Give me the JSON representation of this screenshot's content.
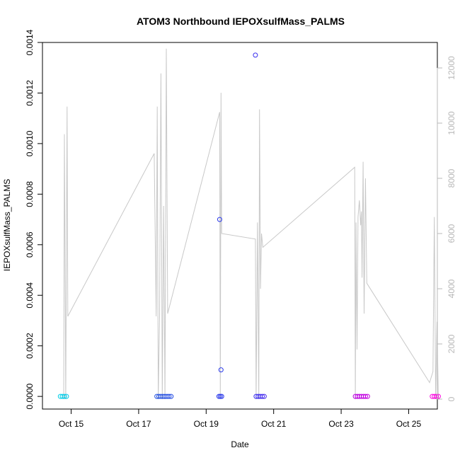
{
  "chart_data": {
    "type": "scatter",
    "title": "ATOM3 Northbound IEPOXsulfMass_PALMS",
    "xlabel": "Date",
    "ylabel": "IEPOXsulfMass_PALMS",
    "x_ticks": [
      "Oct 15",
      "Oct 17",
      "Oct 19",
      "Oct 21",
      "Oct 23",
      "Oct 25"
    ],
    "y_ticks": [
      "0.0000",
      "0.0002",
      "0.0004",
      "0.0006",
      "0.0008",
      "0.0010",
      "0.0012",
      "0.0014"
    ],
    "y_right_ticks": [
      "0",
      "2000",
      "4000",
      "6000",
      "8000",
      "10000",
      "12000"
    ],
    "xlim": [
      "2016-10-14T03:36",
      "2016-10-25T20:24"
    ],
    "ylim": [
      -5e-05,
      0.0014
    ],
    "y_right_lim": [
      0,
      12000
    ],
    "grid": false,
    "series": [
      {
        "type": "scatter",
        "color_ramp": [
          "#00d0e8",
          "#2050e0",
          "#3030f0",
          "#b000e0",
          "#ff00e0"
        ],
        "points": [
          {
            "x": 14.68,
            "y": 0.0
          },
          {
            "x": 14.74,
            "y": 0.0
          },
          {
            "x": 14.8,
            "y": 0.0
          },
          {
            "x": 14.86,
            "y": 0.0
          },
          {
            "x": 17.54,
            "y": 0.0
          },
          {
            "x": 17.6,
            "y": 0.0
          },
          {
            "x": 17.66,
            "y": 0.0
          },
          {
            "x": 17.72,
            "y": 0.0
          },
          {
            "x": 17.78,
            "y": 0.0
          },
          {
            "x": 17.84,
            "y": 0.0
          },
          {
            "x": 17.9,
            "y": 0.0
          },
          {
            "x": 17.96,
            "y": 0.0
          },
          {
            "x": 19.38,
            "y": 0.0
          },
          {
            "x": 19.42,
            "y": 0.0
          },
          {
            "x": 19.46,
            "y": 0.0
          },
          {
            "x": 19.4,
            "y": 0.0007
          },
          {
            "x": 19.44,
            "y": 0.000105
          },
          {
            "x": 20.48,
            "y": 0.0
          },
          {
            "x": 20.54,
            "y": 0.0
          },
          {
            "x": 20.6,
            "y": 0.0
          },
          {
            "x": 20.66,
            "y": 0.0
          },
          {
            "x": 20.72,
            "y": 0.0
          },
          {
            "x": 20.46,
            "y": 0.00135
          },
          {
            "x": 23.42,
            "y": 0.0
          },
          {
            "x": 23.48,
            "y": 0.0
          },
          {
            "x": 23.54,
            "y": 0.0
          },
          {
            "x": 23.6,
            "y": 0.0
          },
          {
            "x": 23.66,
            "y": 0.0
          },
          {
            "x": 23.72,
            "y": 0.0
          },
          {
            "x": 23.78,
            "y": 0.0
          },
          {
            "x": 25.7,
            "y": 0.0
          },
          {
            "x": 25.76,
            "y": 0.0
          },
          {
            "x": 25.82,
            "y": 0.0
          },
          {
            "x": 25.88,
            "y": 0.0
          }
        ]
      },
      {
        "type": "line",
        "axis": "right",
        "color": "#c8c8c8",
        "points": [
          {
            "x": 14.78,
            "y": 0
          },
          {
            "x": 14.8,
            "y": 9600
          },
          {
            "x": 14.84,
            "y": 0
          },
          {
            "x": 14.88,
            "y": 10600
          },
          {
            "x": 14.9,
            "y": 3000
          },
          {
            "x": 17.46,
            "y": 8900
          },
          {
            "x": 17.52,
            "y": 3000
          },
          {
            "x": 17.55,
            "y": 10600
          },
          {
            "x": 17.58,
            "y": 0
          },
          {
            "x": 17.62,
            "y": 3000
          },
          {
            "x": 17.66,
            "y": 11800
          },
          {
            "x": 17.7,
            "y": 0
          },
          {
            "x": 17.74,
            "y": 7000
          },
          {
            "x": 17.78,
            "y": 0
          },
          {
            "x": 17.82,
            "y": 12700
          },
          {
            "x": 17.86,
            "y": 3100
          },
          {
            "x": 19.4,
            "y": 10400
          },
          {
            "x": 19.42,
            "y": 0
          },
          {
            "x": 19.44,
            "y": 11100
          },
          {
            "x": 19.46,
            "y": 6000
          },
          {
            "x": 20.46,
            "y": 5800
          },
          {
            "x": 20.48,
            "y": 0
          },
          {
            "x": 20.52,
            "y": 6400
          },
          {
            "x": 20.56,
            "y": 0
          },
          {
            "x": 20.58,
            "y": 10500
          },
          {
            "x": 20.61,
            "y": 4000
          },
          {
            "x": 20.64,
            "y": 6000
          },
          {
            "x": 20.68,
            "y": 5500
          },
          {
            "x": 23.4,
            "y": 8400
          },
          {
            "x": 23.42,
            "y": 0
          },
          {
            "x": 23.44,
            "y": 6400
          },
          {
            "x": 23.47,
            "y": 1800
          },
          {
            "x": 23.5,
            "y": 6600
          },
          {
            "x": 23.54,
            "y": 7200
          },
          {
            "x": 23.58,
            "y": 6300
          },
          {
            "x": 23.6,
            "y": 6800
          },
          {
            "x": 23.62,
            "y": 4400
          },
          {
            "x": 23.65,
            "y": 8600
          },
          {
            "x": 23.68,
            "y": 3100
          },
          {
            "x": 23.72,
            "y": 8000
          },
          {
            "x": 23.76,
            "y": 4200
          },
          {
            "x": 25.62,
            "y": 600
          },
          {
            "x": 25.72,
            "y": 1000
          },
          {
            "x": 25.76,
            "y": 6600
          },
          {
            "x": 25.8,
            "y": 0
          },
          {
            "x": 25.84,
            "y": 2800
          },
          {
            "x": 25.88,
            "y": 0
          }
        ]
      }
    ]
  }
}
